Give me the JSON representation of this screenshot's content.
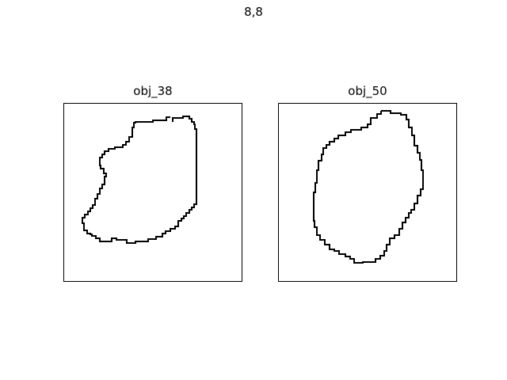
{
  "figure": {
    "suptitle": "8,8",
    "panels": [
      {
        "title": "obj_38",
        "stroke": "#000000"
      },
      {
        "title": "obj_50",
        "stroke": "#000000"
      }
    ]
  }
}
